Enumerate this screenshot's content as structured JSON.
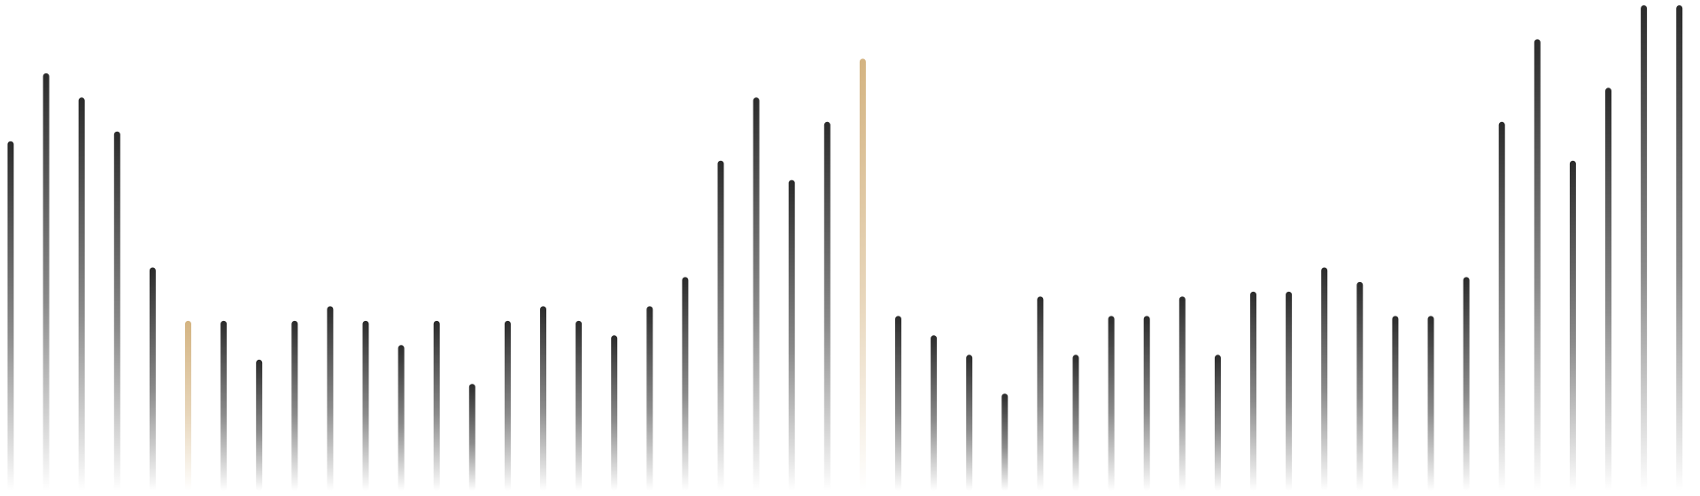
{
  "chart_data": {
    "type": "bar",
    "title": "",
    "xlabel": "",
    "ylabel": "",
    "grid": false,
    "legend": "none",
    "ylim": [
      0,
      100
    ],
    "values": [
      72,
      86,
      81,
      74,
      46,
      35,
      35,
      27,
      35,
      38,
      35,
      30,
      35,
      22,
      35,
      38,
      35,
      32,
      38,
      44,
      68,
      81,
      64,
      76,
      89,
      36,
      32,
      28,
      20,
      40,
      28,
      36,
      36,
      40,
      28,
      41,
      41,
      46,
      43,
      36,
      36,
      44,
      76,
      93,
      68,
      83,
      100,
      100
    ],
    "highlight_indices": [
      5,
      24
    ],
    "colors": {
      "bar": "#2b2b2b",
      "highlight": "#d4b482",
      "background": "#ffffff"
    }
  }
}
